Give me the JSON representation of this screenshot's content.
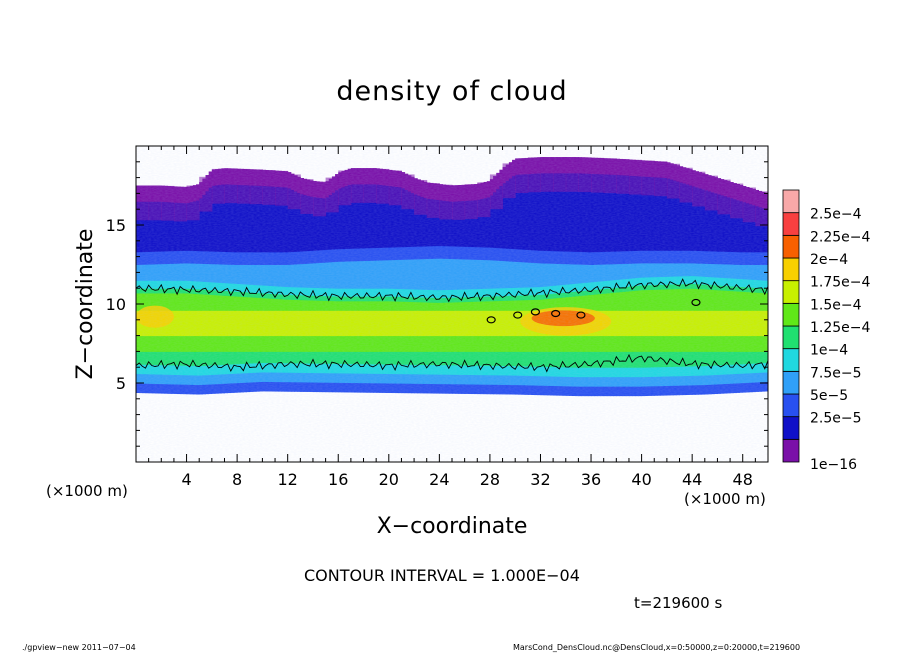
{
  "title": "density of cloud",
  "x_unit_left": "(×1000 m)",
  "x_unit_right": "(×1000 m)",
  "contour_note": "CONTOUR INTERVAL = 1.000E−04",
  "time_label": "t=219600 s",
  "footer_left": "./gpview−new   2011−07−04",
  "footer_right": "MarsCond_DensCloud.nc@DensCloud,x=0:50000,z=0:20000,t=219600",
  "chart_data": {
    "type": "heatmap",
    "title": "density of cloud",
    "xlabel": "X−coordinate",
    "ylabel": "Z−coordinate",
    "xlim": [
      0,
      50
    ],
    "ylim": [
      0,
      20
    ],
    "xticks": [
      4,
      8,
      12,
      16,
      20,
      24,
      28,
      32,
      36,
      40,
      44,
      48
    ],
    "xtick_labels": [
      "4",
      "8",
      "12",
      "16",
      "20",
      "24",
      "28",
      "32",
      "36",
      "40",
      "44",
      "48"
    ],
    "yticks": [
      5,
      10,
      15
    ],
    "ytick_labels": [
      "5",
      "10",
      "15"
    ],
    "contour_interval": 0.0001,
    "colorbar": {
      "levels": [
        "1e−16",
        "2.5e−5",
        "5e−5",
        "7.5e−5",
        "1e−4",
        "1.25e−4",
        "1.5e−4",
        "1.75e−4",
        "2e−4",
        "2.25e−4",
        "2.5e−4"
      ],
      "colors": [
        "#7a10a8",
        "#1010c8",
        "#2850f0",
        "#30a0f8",
        "#20d8e0",
        "#20e070",
        "#60e818",
        "#c8f000",
        "#f8d000",
        "#f86000",
        "#f84040",
        "#f8a8a8"
      ]
    },
    "top_boundary": [
      [
        0,
        17.5
      ],
      [
        2,
        17.5
      ],
      [
        4,
        17.4
      ],
      [
        5,
        17.6
      ],
      [
        6,
        18.5
      ],
      [
        7,
        18.6
      ],
      [
        10,
        18.5
      ],
      [
        12,
        18.4
      ],
      [
        13,
        18.0
      ],
      [
        14,
        17.8
      ],
      [
        15,
        17.7
      ],
      [
        16,
        18.3
      ],
      [
        17,
        18.6
      ],
      [
        19,
        18.6
      ],
      [
        21,
        18.4
      ],
      [
        22,
        18.0
      ],
      [
        23,
        17.7
      ],
      [
        25,
        17.5
      ],
      [
        27,
        17.6
      ],
      [
        28,
        17.8
      ],
      [
        29,
        18.6
      ],
      [
        30,
        19.2
      ],
      [
        32,
        19.3
      ],
      [
        35,
        19.3
      ],
      [
        38,
        19.2
      ],
      [
        40,
        19.1
      ],
      [
        42,
        19.0
      ],
      [
        44,
        18.5
      ],
      [
        46,
        18.0
      ],
      [
        48,
        17.5
      ],
      [
        50,
        17.0
      ]
    ],
    "bottom_boundary": [
      [
        0,
        4.4
      ],
      [
        5,
        4.3
      ],
      [
        10,
        4.5
      ],
      [
        20,
        4.4
      ],
      [
        30,
        4.3
      ],
      [
        35,
        4.2
      ],
      [
        40,
        4.2
      ],
      [
        45,
        4.3
      ],
      [
        50,
        4.5
      ]
    ],
    "layers": [
      {
        "x": [
          0,
          4,
          8,
          12,
          16,
          20,
          24,
          28,
          32,
          36,
          40,
          44,
          48,
          50
        ],
        "z": [
          14.5,
          14.6,
          14.8,
          15.0,
          15.3,
          15.5,
          15.5,
          15.0,
          14.3,
          13.6,
          13.5,
          13.8,
          14.2,
          14.4
        ],
        "level": "2.5e−5"
      },
      {
        "x": [
          0,
          4,
          8,
          12,
          16,
          20,
          24,
          28,
          32,
          36,
          40,
          44,
          48,
          50
        ],
        "z": [
          12.5,
          12.6,
          12.5,
          12.5,
          12.7,
          12.8,
          12.9,
          12.8,
          12.6,
          12.5,
          12.6,
          12.6,
          12.5,
          12.5
        ],
        "level": "5e−5"
      },
      {
        "x": [
          0,
          4,
          8,
          12,
          16,
          20,
          24,
          28,
          32,
          36,
          40,
          44,
          48,
          50
        ],
        "z": [
          11.0,
          11.0,
          10.8,
          10.6,
          10.5,
          10.5,
          10.4,
          10.5,
          10.6,
          10.9,
          11.2,
          11.3,
          11.1,
          11.0
        ],
        "level": "1e−4"
      }
    ],
    "contours": [
      {
        "x": [
          0,
          4,
          8,
          12,
          16,
          20,
          24,
          28,
          32,
          36,
          40,
          44,
          48,
          50
        ],
        "z": [
          11.0,
          10.9,
          10.8,
          10.6,
          10.5,
          10.5,
          10.4,
          10.5,
          10.7,
          10.9,
          11.2,
          11.3,
          11.0,
          10.9
        ]
      },
      {
        "x": [
          0,
          4,
          8,
          12,
          16,
          20,
          24,
          28,
          32,
          36,
          40,
          44,
          48,
          50
        ],
        "z": [
          6.1,
          6.2,
          6.0,
          6.2,
          6.2,
          6.1,
          6.2,
          6.1,
          6.0,
          6.2,
          6.6,
          6.2,
          6.1,
          6.2
        ]
      }
    ],
    "peak_regions": [
      {
        "x": 34,
        "z": 8.9,
        "rx": 3.6,
        "rz": 0.9,
        "level": "1.75e−4"
      },
      {
        "x": 33.8,
        "z": 9.1,
        "rx": 2.5,
        "rz": 0.5,
        "level": "2e−4"
      },
      {
        "x": 1.5,
        "z": 9.2,
        "rx": 1.5,
        "rz": 0.7,
        "level": "1.75e−4"
      }
    ]
  }
}
